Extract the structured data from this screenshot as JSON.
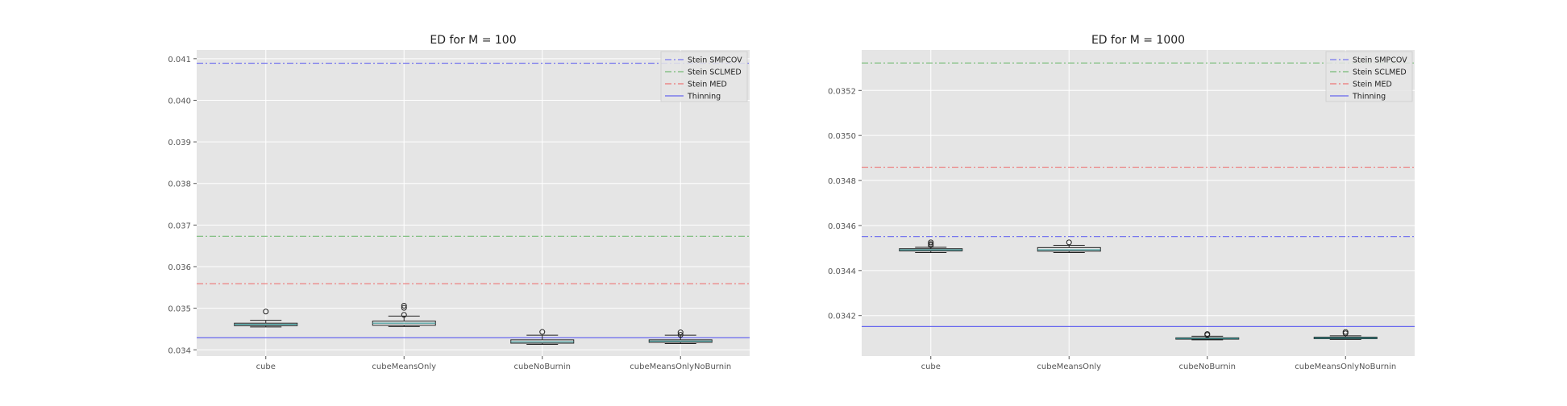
{
  "chart_data": [
    {
      "type": "box",
      "title": "ED for M = 100",
      "categories": [
        "cube",
        "cubeMeansOnly",
        "cubeNoBurnin",
        "cubeMeansOnlyNoBurnin"
      ],
      "boxes": [
        {
          "whislo": 0.03455,
          "q1": 0.03458,
          "med": 0.03461,
          "q3": 0.03464,
          "whishi": 0.03471,
          "fliers": [
            0.03492
          ]
        },
        {
          "whislo": 0.03456,
          "q1": 0.03459,
          "med": 0.03464,
          "q3": 0.03469,
          "whishi": 0.03481,
          "fliers": [
            0.03484,
            0.03501,
            0.03506
          ]
        },
        {
          "whislo": 0.03413,
          "q1": 0.03416,
          "med": 0.03419,
          "q3": 0.03424,
          "whishi": 0.03435,
          "fliers": [
            0.03443
          ]
        },
        {
          "whislo": 0.03415,
          "q1": 0.03418,
          "med": 0.03421,
          "q3": 0.03424,
          "whishi": 0.03435,
          "fliers": [
            0.03436,
            0.03442
          ]
        }
      ],
      "reference_lines": [
        {
          "name": "Stein SMPCOV",
          "value": 0.04089,
          "color": "#7777ee",
          "style": "dashdot"
        },
        {
          "name": "Stein SCLMED",
          "value": 0.03673,
          "color": "#77bb77",
          "style": "dashdot"
        },
        {
          "name": "Stein MED",
          "value": 0.03559,
          "color": "#ee7777",
          "style": "dashdot"
        },
        {
          "name": "Thinning",
          "value": 0.03429,
          "color": "#6666ee",
          "style": "solid"
        }
      ],
      "ylim": [
        0.03385,
        0.04121
      ],
      "yticks": [
        0.034,
        0.035,
        0.036,
        0.037,
        0.038,
        0.039,
        0.04,
        0.041
      ],
      "ytick_labels": [
        "0.034",
        "0.035",
        "0.036",
        "0.037",
        "0.038",
        "0.039",
        "0.040",
        "0.041"
      ],
      "grid": true,
      "legend_position": "top-right"
    },
    {
      "type": "box",
      "title": "ED for M = 1000",
      "categories": [
        "cube",
        "cubeMeansOnly",
        "cubeNoBurnin",
        "cubeMeansOnlyNoBurnin"
      ],
      "boxes": [
        {
          "whislo": 0.03448,
          "q1": 0.034487,
          "med": 0.034492,
          "q3": 0.034497,
          "whishi": 0.034503,
          "fliers": [
            0.034512,
            0.034518,
            0.034525
          ]
        },
        {
          "whislo": 0.03448,
          "q1": 0.034486,
          "med": 0.034492,
          "q3": 0.034502,
          "whishi": 0.034512,
          "fliers": [
            0.034525
          ]
        },
        {
          "whislo": 0.034092,
          "q1": 0.034095,
          "med": 0.034098,
          "q3": 0.034101,
          "whishi": 0.034108,
          "fliers": [
            0.034114,
            0.034118
          ]
        },
        {
          "whislo": 0.034094,
          "q1": 0.034097,
          "med": 0.0341,
          "q3": 0.034104,
          "whishi": 0.03411,
          "fliers": [
            0.034121,
            0.034127
          ]
        }
      ],
      "reference_lines": [
        {
          "name": "Stein SMPCOV",
          "value": 0.034551,
          "color": "#7777ee",
          "style": "dashdot"
        },
        {
          "name": "Stein SCLMED",
          "value": 0.035322,
          "color": "#77bb77",
          "style": "dashdot"
        },
        {
          "name": "Stein MED",
          "value": 0.034859,
          "color": "#ee7777",
          "style": "dashdot"
        },
        {
          "name": "Thinning",
          "value": 0.034151,
          "color": "#6666ee",
          "style": "solid"
        }
      ],
      "ylim": [
        0.03402,
        0.03538
      ],
      "yticks": [
        0.0342,
        0.0344,
        0.0346,
        0.0348,
        0.035,
        0.0352
      ],
      "ytick_labels": [
        "0.0342",
        "0.0344",
        "0.0346",
        "0.0348",
        "0.0350",
        "0.0352"
      ],
      "grid": true,
      "legend_position": "top-right"
    }
  ]
}
